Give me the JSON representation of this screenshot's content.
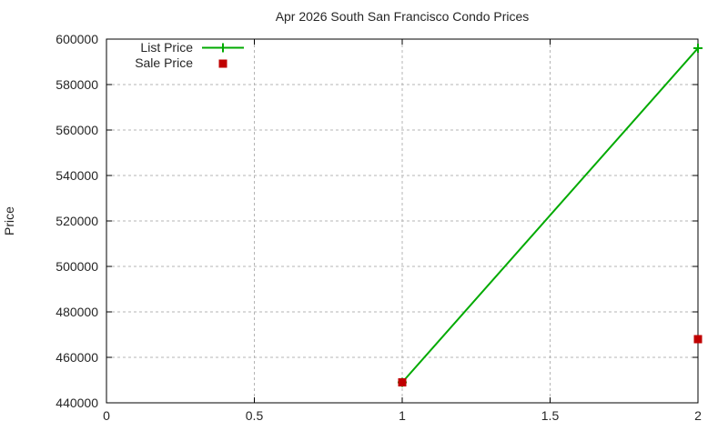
{
  "chart_data": {
    "type": "line",
    "title": "Apr 2026 South San Francisco Condo Prices",
    "ylabel": "Price",
    "xlabel": "",
    "xlim": [
      0,
      2
    ],
    "ylim": [
      440000,
      600000
    ],
    "xticks": [
      0,
      0.5,
      1,
      1.5,
      2
    ],
    "yticks": [
      440000,
      460000,
      480000,
      500000,
      520000,
      540000,
      560000,
      580000,
      600000
    ],
    "grid": "dashed-gray",
    "legend_position": "top-left-inside",
    "series": [
      {
        "name": "List Price",
        "type": "line-with-plus-markers",
        "marker": "plus",
        "color": "#00AA00",
        "x": [
          1,
          2
        ],
        "y": [
          449000,
          596000
        ]
      },
      {
        "name": "Sale Price",
        "type": "scatter",
        "marker": "square",
        "color": "#C00000",
        "x": [
          1,
          2
        ],
        "y": [
          449000,
          468000
        ]
      }
    ]
  },
  "colors": {
    "background": "#ffffff",
    "grid": "#b4b4b4",
    "axis": "#000000",
    "text": "#262626"
  }
}
